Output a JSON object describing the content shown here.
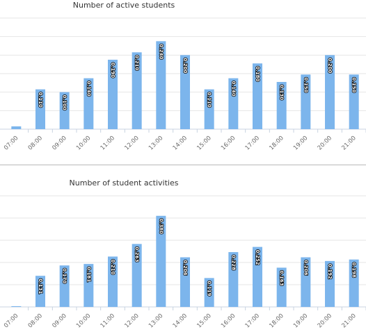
{
  "chart_data": [
    {
      "type": "bar",
      "title": "Number of active students",
      "categories": [
        "07:00",
        "08:00",
        "09:00",
        "10:00",
        "11:00",
        "12:00",
        "13:00",
        "14:00",
        "15:00",
        "16:00",
        "17:00",
        "18:00",
        "19:00",
        "20:00",
        "21:00"
      ],
      "values": [
        3,
        43,
        40,
        55,
        75,
        83,
        95,
        80,
        43,
        55,
        71,
        51,
        59,
        80,
        59
      ],
      "value_labels": [
        "",
        "0.110",
        "0.100",
        "0.140",
        "0.190",
        "0.210",
        "0.240",
        "0.200",
        "0.110",
        "0.140",
        "0.180",
        "0.130",
        "0.150",
        "0.200",
        "0.150"
      ],
      "ylim": [
        0,
        120
      ],
      "grid": true,
      "color": "#7cb5ec"
    },
    {
      "type": "bar",
      "title": "Number of student activities",
      "categories": [
        "07:00",
        "08:00",
        "09:00",
        "10:00",
        "11:00",
        "12:00",
        "13:00",
        "14:00",
        "15:00",
        "16:00",
        "17:00",
        "18:00",
        "19:00",
        "20:00",
        "21:00"
      ],
      "values": [
        1,
        42,
        56,
        58,
        68,
        85,
        123,
        67,
        39,
        74,
        81,
        53,
        67,
        62,
        64
      ],
      "value_labels": [
        "",
        "0.131",
        "0.170",
        "0.181",
        "0.210",
        "0.263",
        "0.380",
        "0.206",
        "0.119",
        "0.228",
        "0.252",
        "0.163",
        "0.206",
        "0.192",
        "0.198"
      ],
      "ylim": [
        0,
        150
      ],
      "grid": true,
      "color": "#7cb5ec"
    }
  ]
}
